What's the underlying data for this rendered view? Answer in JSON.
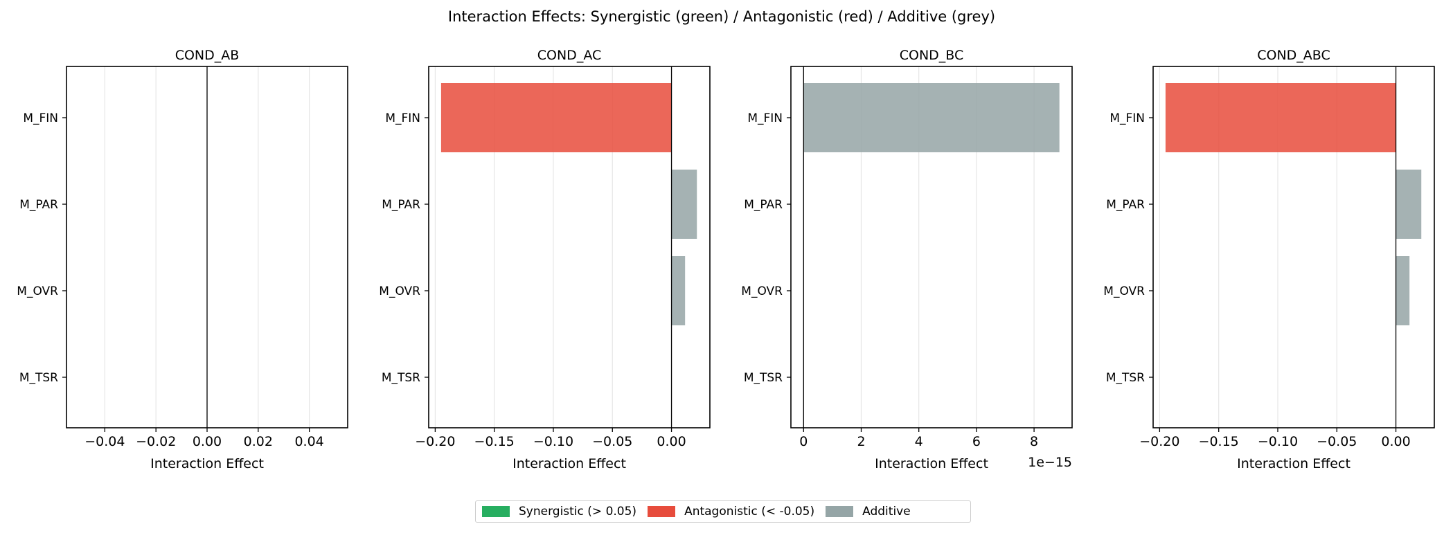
{
  "figure": {
    "suptitle": "Interaction Effects: Synergistic (green) / Antagonistic (red) / Additive (grey)"
  },
  "colors": {
    "synergistic": "#27ae60",
    "antagonistic": "#e74c3c",
    "additive": "#95a5a6"
  },
  "legend": {
    "placement": "lower-center",
    "items": [
      {
        "label": "Synergistic (> 0.05)",
        "color": "#27ae60"
      },
      {
        "label": "Antagonistic (< -0.05)",
        "color": "#e74c3c"
      },
      {
        "label": "Additive",
        "color": "#95a5a6"
      }
    ]
  },
  "chart_data": [
    {
      "type": "bar",
      "orientation": "horizontal",
      "title": "COND_AB",
      "xlabel": "Interaction Effect",
      "categories": [
        "M_FIN",
        "M_PAR",
        "M_OVR",
        "M_TSR"
      ],
      "values": [
        0,
        0,
        0,
        0
      ],
      "classes": [
        "additive",
        "additive",
        "additive",
        "additive"
      ],
      "xlim": [
        -0.055,
        0.055
      ],
      "xticks": [
        -0.04,
        -0.02,
        0.0,
        0.02,
        0.04
      ],
      "xtick_labels": [
        "−0.04",
        "−0.02",
        "0.00",
        "0.02",
        "0.04"
      ],
      "x_offset_label": "",
      "grid": "x"
    },
    {
      "type": "bar",
      "orientation": "horizontal",
      "title": "COND_AC",
      "xlabel": "Interaction Effect",
      "categories": [
        "M_FIN",
        "M_PAR",
        "M_OVR",
        "M_TSR"
      ],
      "values": [
        -0.195,
        0.0215,
        0.0115,
        0
      ],
      "classes": [
        "antagonistic",
        "additive",
        "additive",
        "additive"
      ],
      "xlim": [
        -0.2055,
        0.0325
      ],
      "xticks": [
        -0.2,
        -0.15,
        -0.1,
        -0.05,
        0.0
      ],
      "xtick_labels": [
        "−0.20",
        "−0.15",
        "−0.10",
        "−0.05",
        "0.00"
      ],
      "x_offset_label": "",
      "grid": "x"
    },
    {
      "type": "bar",
      "orientation": "horizontal",
      "title": "COND_BC",
      "xlabel": "Interaction Effect",
      "categories": [
        "M_FIN",
        "M_PAR",
        "M_OVR",
        "M_TSR"
      ],
      "values": [
        8.88,
        0,
        0,
        0
      ],
      "value_scale": "1e-15",
      "classes": [
        "additive",
        "additive",
        "additive",
        "additive"
      ],
      "xlim": [
        -0.44,
        9.32
      ],
      "xticks": [
        0,
        2,
        4,
        6,
        8
      ],
      "xtick_labels": [
        "0",
        "2",
        "4",
        "6",
        "8"
      ],
      "x_offset_label": "1e−15",
      "grid": "x"
    },
    {
      "type": "bar",
      "orientation": "horizontal",
      "title": "COND_ABC",
      "xlabel": "Interaction Effect",
      "categories": [
        "M_FIN",
        "M_PAR",
        "M_OVR",
        "M_TSR"
      ],
      "values": [
        -0.195,
        0.0215,
        0.0115,
        0
      ],
      "classes": [
        "antagonistic",
        "additive",
        "additive",
        "additive"
      ],
      "xlim": [
        -0.2055,
        0.0325
      ],
      "xticks": [
        -0.2,
        -0.15,
        -0.1,
        -0.05,
        0.0
      ],
      "xtick_labels": [
        "−0.20",
        "−0.15",
        "−0.10",
        "−0.05",
        "0.00"
      ],
      "x_offset_label": "",
      "grid": "x"
    }
  ]
}
